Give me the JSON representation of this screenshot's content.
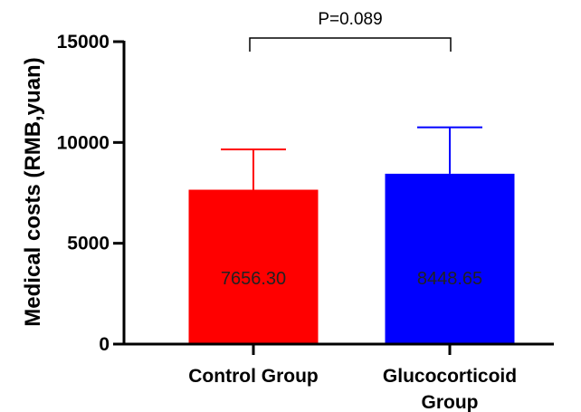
{
  "chart_data": {
    "type": "bar",
    "title": "",
    "xlabel": "",
    "ylabel": "Medical costs (RMB,yuan)",
    "ylim": [
      0,
      15000
    ],
    "yticks": [
      0,
      5000,
      10000,
      15000
    ],
    "grid": false,
    "categories": [
      {
        "lines": [
          "Control Group"
        ]
      },
      {
        "lines": [
          "Glucocorticoid",
          "Group"
        ]
      }
    ],
    "values": [
      7656.3,
      8448.65
    ],
    "error_upper": [
      2000,
      2300
    ],
    "value_labels": [
      "7656.30",
      "8448.65"
    ],
    "colors": [
      "#ff0000",
      "#0000ff"
    ],
    "annotation": {
      "text": "P=0.089",
      "between": [
        0,
        1
      ],
      "y": 15000
    }
  }
}
